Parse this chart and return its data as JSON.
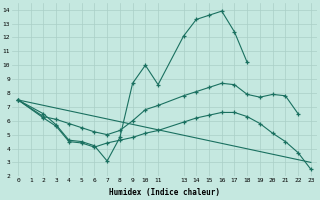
{
  "bg_color": "#c5e8e0",
  "line_color": "#1a7060",
  "grid_color": "#aacfc7",
  "xlabel": "Humidex (Indice chaleur)",
  "xlim": [
    -0.5,
    23.5
  ],
  "ylim": [
    2,
    14.5
  ],
  "xticks": [
    0,
    1,
    2,
    3,
    4,
    5,
    6,
    7,
    8,
    9,
    10,
    11,
    13,
    14,
    15,
    16,
    17,
    18,
    19,
    20,
    21,
    22,
    23
  ],
  "yticks": [
    2,
    3,
    4,
    5,
    6,
    7,
    8,
    9,
    10,
    11,
    12,
    13,
    14
  ],
  "curve1_x": [
    0,
    2,
    3,
    4,
    5,
    6,
    7,
    8,
    9,
    10,
    11,
    13,
    14,
    15,
    16,
    17,
    18
  ],
  "curve1_y": [
    7.5,
    6.5,
    5.7,
    4.6,
    4.5,
    4.2,
    3.1,
    4.8,
    8.7,
    10.0,
    8.6,
    12.1,
    13.3,
    13.6,
    13.9,
    12.4,
    10.2
  ],
  "curve2_x": [
    0,
    2,
    3,
    4,
    5,
    6,
    7,
    8,
    9,
    10,
    11,
    13,
    14,
    15,
    16,
    17,
    18,
    19,
    20,
    21,
    22
  ],
  "curve2_y": [
    7.5,
    6.3,
    6.1,
    5.8,
    5.5,
    5.2,
    5.0,
    5.3,
    6.0,
    6.8,
    7.1,
    7.8,
    8.1,
    8.4,
    8.7,
    8.6,
    7.9,
    7.7,
    7.9,
    7.8,
    6.5
  ],
  "curve3_x": [
    0,
    2,
    3,
    4,
    5,
    6,
    7,
    8,
    9,
    10,
    11,
    13,
    14,
    15,
    16,
    17,
    18,
    19,
    20,
    21,
    22,
    23
  ],
  "curve3_y": [
    7.5,
    6.2,
    5.6,
    4.5,
    4.4,
    4.1,
    4.4,
    4.6,
    4.8,
    5.1,
    5.3,
    5.9,
    6.2,
    6.4,
    6.6,
    6.6,
    6.3,
    5.8,
    5.1,
    4.5,
    3.7,
    2.5
  ],
  "curve4_x": [
    0,
    23
  ],
  "curve4_y": [
    7.5,
    3.0
  ]
}
